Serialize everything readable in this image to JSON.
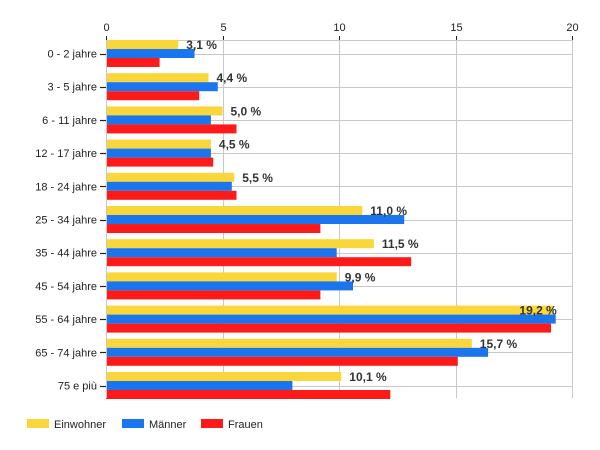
{
  "chart_data": {
    "type": "bar",
    "orientation": "horizontal",
    "title": "",
    "xlabel": "",
    "ylabel": "",
    "xlim": [
      0,
      20
    ],
    "x_ticks": [
      "0",
      "5",
      "10",
      "15",
      "20"
    ],
    "x_tick_values": [
      0,
      5,
      10,
      15,
      20
    ],
    "grid": true,
    "legend_position": "bottom-left",
    "categories": [
      "0 - 2 jahre",
      "3 - 5 jahre",
      "6 - 11 jahre",
      "12 - 17 jahre",
      "18 - 24 jahre",
      "25 - 34 jahre",
      "35 - 44 jahre",
      "45 - 54 jahre",
      "55 - 64 jahre",
      "65 - 74 jahre",
      "75 e più"
    ],
    "series": [
      {
        "name": "Einwohner",
        "color": "#F9D63A",
        "values": [
          3.1,
          4.4,
          5.0,
          4.5,
          5.5,
          11.0,
          11.5,
          9.9,
          19.2,
          15.7,
          10.1
        ]
      },
      {
        "name": "Männer",
        "color": "#1B75EE",
        "values": [
          3.8,
          4.8,
          4.5,
          4.5,
          5.4,
          12.8,
          9.9,
          10.6,
          19.3,
          16.4,
          8.0
        ]
      },
      {
        "name": "Frauen",
        "color": "#FF1A1A",
        "values": [
          2.3,
          4.0,
          5.6,
          4.6,
          5.6,
          9.2,
          13.1,
          9.2,
          19.1,
          15.1,
          12.2
        ]
      }
    ],
    "data_labels": [
      "3,1 %",
      "4,4 %",
      "5,0 %",
      "4,5 %",
      "5,5 %",
      "11,0 %",
      "11,5 %",
      "9,9 %",
      "19,2 %",
      "15,7 %",
      "10,1 %"
    ]
  }
}
